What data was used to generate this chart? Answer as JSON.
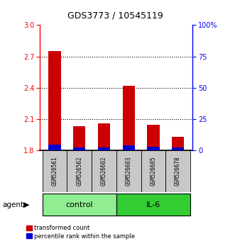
{
  "title": "GDS3773 / 10545119",
  "samples": [
    "GSM526561",
    "GSM526562",
    "GSM526602",
    "GSM526603",
    "GSM526605",
    "GSM526678"
  ],
  "groups": [
    "control",
    "control",
    "control",
    "IL-6",
    "IL-6",
    "IL-6"
  ],
  "red_values": [
    2.75,
    2.03,
    2.06,
    2.42,
    2.05,
    1.93
  ],
  "blue_values": [
    0.06,
    0.03,
    0.03,
    0.05,
    0.04,
    0.03
  ],
  "ymin": 1.8,
  "ymax": 3.0,
  "yticks": [
    1.8,
    2.1,
    2.4,
    2.7,
    3.0
  ],
  "y2ticks": [
    0,
    25,
    50,
    75,
    100
  ],
  "y2labels": [
    "0",
    "25",
    "50",
    "75",
    "100%"
  ],
  "dotted_lines": [
    2.1,
    2.4,
    2.7
  ],
  "control_color": "#90EE90",
  "il6_color": "#32CD32",
  "bar_width": 0.5,
  "red_color": "#CC0000",
  "blue_color": "#0000CC",
  "legend_items": [
    "transformed count",
    "percentile rank within the sample"
  ],
  "agent_label": "agent",
  "label_gray": "#C8C8C8"
}
